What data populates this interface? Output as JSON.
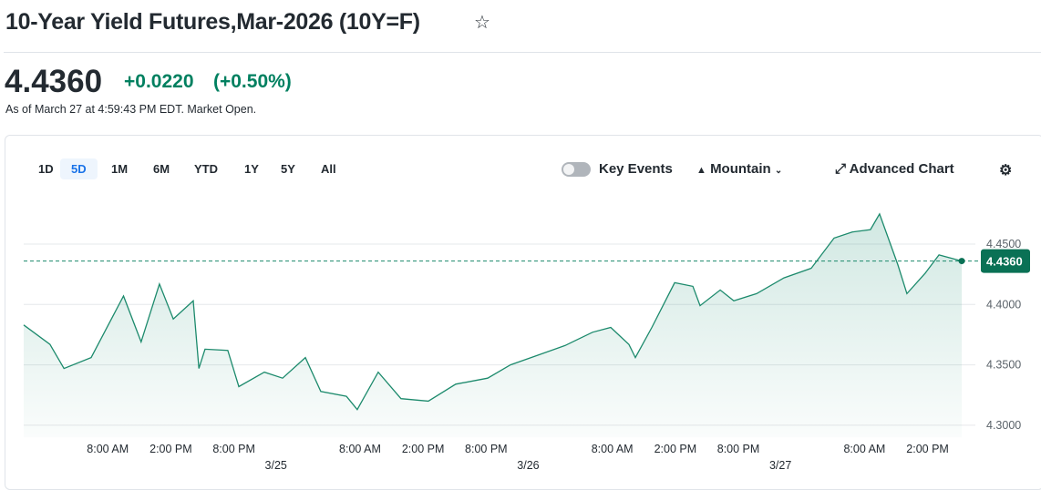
{
  "header": {
    "title": "10-Year Yield Futures,Mar-2026 (10Y=F)",
    "star_icon": "star-outline-icon",
    "price": "4.4360",
    "change": "+0.0220",
    "change_pct": "(+0.50%)",
    "as_of": "As of March 27 at 4:59:43 PM EDT. Market Open.",
    "up_color": "#008060"
  },
  "toolbar": {
    "ranges": [
      "1D",
      "5D",
      "1M",
      "6M",
      "YTD",
      "1Y",
      "5Y",
      "All"
    ],
    "active_range": "5D",
    "key_events": "Key Events",
    "chart_type": "Mountain",
    "advanced": "Advanced Chart",
    "settings_icon": "gear-icon"
  },
  "chart_data": {
    "type": "area",
    "ylim": [
      4.29,
      4.48
    ],
    "yticks": [
      "4.3000",
      "4.3500",
      "4.4000",
      "4.4500"
    ],
    "current_label": "4.4360",
    "current_value": 4.436,
    "grid": true,
    "xticks": [
      {
        "x": "03/24 08:00",
        "label": "8:00 AM"
      },
      {
        "x": "03/24 14:00",
        "label": "2:00 PM"
      },
      {
        "x": "03/24 20:00",
        "label": "8:00 PM"
      },
      {
        "x": "03/25 08:00",
        "label": "8:00 AM"
      },
      {
        "x": "03/25 14:00",
        "label": "2:00 PM"
      },
      {
        "x": "03/25 20:00",
        "label": "8:00 PM"
      },
      {
        "x": "03/26 08:00",
        "label": "8:00 AM"
      },
      {
        "x": "03/26 14:00",
        "label": "2:00 PM"
      },
      {
        "x": "03/26 20:00",
        "label": "8:00 PM"
      },
      {
        "x": "03/27 08:00",
        "label": "8:00 AM"
      },
      {
        "x": "03/27 14:00",
        "label": "2:00 PM"
      }
    ],
    "date_ticks": [
      {
        "x": "03/25 00:00",
        "label": "3/25"
      },
      {
        "x": "03/26 00:00",
        "label": "3/26"
      },
      {
        "x": "03/27 00:00",
        "label": "3/27"
      }
    ],
    "series": [
      {
        "points": [
          [
            "03/24 00:00",
            4.383
          ],
          [
            "03/24 02:30",
            4.367
          ],
          [
            "03/24 03:50",
            4.347
          ],
          [
            "03/24 06:25",
            4.356
          ],
          [
            "03/24 08:35",
            4.392
          ],
          [
            "03/24 09:30",
            4.407
          ],
          [
            "03/24 11:10",
            4.369
          ],
          [
            "03/24 12:55",
            4.417
          ],
          [
            "03/24 14:14",
            4.388
          ],
          [
            "03/24 16:08",
            4.403
          ],
          [
            "03/24 16:40",
            4.347
          ],
          [
            "03/24 17:15",
            4.363
          ],
          [
            "03/24 19:25",
            4.362
          ],
          [
            "03/24 20:28",
            4.332
          ],
          [
            "03/24 22:54",
            4.344
          ],
          [
            "03/25 00:38",
            4.339
          ],
          [
            "03/25 02:48",
            4.356
          ],
          [
            "03/25 04:16",
            4.328
          ],
          [
            "03/25 06:42",
            4.324
          ],
          [
            "03/25 07:44",
            4.313
          ],
          [
            "03/25 09:44",
            4.344
          ],
          [
            "03/25 11:54",
            4.322
          ],
          [
            "03/25 14:30",
            4.32
          ],
          [
            "03/25 17:06",
            4.334
          ],
          [
            "03/25 20:09",
            4.339
          ],
          [
            "03/25 22:19",
            4.35
          ],
          [
            "03/26 00:55",
            4.358
          ],
          [
            "03/26 03:30",
            4.366
          ],
          [
            "03/26 06:07",
            4.377
          ],
          [
            "03/26 07:51",
            4.381
          ],
          [
            "03/26 09:35",
            4.367
          ],
          [
            "03/26 10:12",
            4.356
          ],
          [
            "03/26 11:46",
            4.381
          ],
          [
            "03/26 13:56",
            4.418
          ],
          [
            "03/26 15:40",
            4.415
          ],
          [
            "03/26 16:21",
            4.399
          ],
          [
            "03/26 18:16",
            4.412
          ],
          [
            "03/26 19:34",
            4.403
          ],
          [
            "03/26 21:44",
            4.409
          ],
          [
            "03/27 00:20",
            4.422
          ],
          [
            "03/27 02:56",
            4.43
          ],
          [
            "03/27 05:06",
            4.455
          ],
          [
            "03/27 06:50",
            4.46
          ],
          [
            "03/27 08:34",
            4.462
          ],
          [
            "03/27 09:26",
            4.475
          ],
          [
            "03/27 11:10",
            4.433
          ],
          [
            "03/27 12:02",
            4.409
          ],
          [
            "03/27 13:47",
            4.426
          ],
          [
            "03/27 15:05",
            4.441
          ],
          [
            "03/27 17:15",
            4.436
          ]
        ]
      }
    ]
  }
}
